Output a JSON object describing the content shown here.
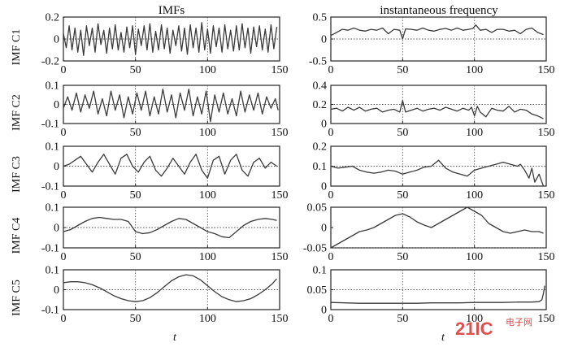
{
  "figure": {
    "left_title": "IMFs",
    "right_title": "instantaneous frequency",
    "xlabel": "t",
    "watermark": {
      "main": "21IC",
      "small": "电子网"
    },
    "colors": {
      "line": "#3a3a3a",
      "axis": "#222222",
      "refline": "#555555",
      "watermark_red": "#d83232",
      "watermark_text": "#d83232"
    }
  },
  "chart_data": [
    {
      "type": "line",
      "panel": "left-1",
      "ylabel": "IMF C1",
      "xlim": [
        0,
        150
      ],
      "ylim": [
        -0.2,
        0.2
      ],
      "xticks": [
        "0",
        "50",
        "100",
        "150"
      ],
      "yticks": [
        "0.2",
        "0",
        "-0.2"
      ],
      "refline_y": 0,
      "vlines": [
        50,
        100
      ],
      "series": [
        {
          "x": [
            0,
            2,
            4,
            6,
            8,
            10,
            12,
            14,
            16,
            18,
            20,
            22,
            24,
            26,
            28,
            30,
            32,
            34,
            36,
            38,
            40,
            42,
            44,
            46,
            48,
            50,
            52,
            54,
            56,
            58,
            60,
            62,
            64,
            66,
            68,
            70,
            72,
            74,
            76,
            78,
            80,
            82,
            84,
            86,
            88,
            90,
            92,
            94,
            96,
            98,
            100,
            102,
            104,
            106,
            108,
            110,
            112,
            114,
            116,
            118,
            120,
            122,
            124,
            126,
            128,
            130,
            132,
            134,
            136,
            138,
            140,
            142,
            144,
            146,
            148
          ],
          "y": [
            0.05,
            -0.08,
            0.12,
            -0.1,
            0.1,
            -0.12,
            0.08,
            -0.15,
            0.12,
            -0.06,
            0.1,
            -0.12,
            0.14,
            -0.05,
            0.08,
            -0.13,
            0.1,
            -0.09,
            0.13,
            -0.1,
            0.06,
            -0.12,
            0.11,
            -0.08,
            0.12,
            -0.14,
            0.09,
            -0.06,
            0.12,
            -0.1,
            0.14,
            -0.12,
            0.07,
            -0.1,
            0.13,
            -0.09,
            0.1,
            -0.13,
            0.08,
            -0.06,
            0.12,
            -0.11,
            0.1,
            -0.14,
            0.13,
            -0.08,
            0.1,
            -0.12,
            0.15,
            -0.1,
            0.09,
            -0.13,
            0.12,
            -0.07,
            0.1,
            -0.12,
            0.13,
            -0.09,
            0.08,
            -0.11,
            0.12,
            -0.1,
            0.14,
            -0.08,
            0.1,
            -0.13,
            0.11,
            -0.07,
            0.12,
            -0.1,
            0.09,
            -0.12,
            0.13,
            -0.09,
            0.11
          ]
        }
      ]
    },
    {
      "type": "line",
      "panel": "left-2",
      "ylabel": "IMF C2",
      "xlim": [
        0,
        150
      ],
      "ylim": [
        -0.1,
        0.1
      ],
      "xticks": [
        "0",
        "50",
        "100",
        "150"
      ],
      "yticks": [
        "0.1",
        "0",
        "-0.1"
      ],
      "refline_y": 0,
      "vlines": [
        50,
        100
      ],
      "series": [
        {
          "x": [
            0,
            3,
            6,
            9,
            12,
            15,
            18,
            21,
            24,
            27,
            30,
            33,
            36,
            39,
            42,
            45,
            48,
            51,
            54,
            57,
            60,
            63,
            66,
            69,
            72,
            75,
            78,
            81,
            84,
            87,
            90,
            93,
            96,
            99,
            102,
            105,
            108,
            111,
            114,
            117,
            120,
            123,
            126,
            129,
            132,
            135,
            138,
            141,
            144,
            147,
            149
          ],
          "y": [
            -0.02,
            0.04,
            -0.03,
            0.06,
            -0.04,
            0.05,
            -0.02,
            0.07,
            -0.05,
            0.03,
            -0.06,
            0.07,
            -0.03,
            0.05,
            -0.07,
            0.04,
            -0.05,
            0.06,
            -0.03,
            0.07,
            -0.06,
            0.04,
            -0.05,
            0.08,
            -0.04,
            0.05,
            -0.07,
            0.06,
            -0.03,
            0.08,
            -0.06,
            0.04,
            -0.05,
            0.07,
            -0.09,
            0.05,
            -0.04,
            0.06,
            -0.05,
            0.03,
            -0.06,
            0.07,
            -0.04,
            0.05,
            -0.03,
            0.06,
            -0.05,
            0.04,
            -0.02,
            0.03,
            -0.03
          ]
        }
      ]
    },
    {
      "type": "line",
      "panel": "left-3",
      "ylabel": "IMF C3",
      "xlim": [
        0,
        150
      ],
      "ylim": [
        -0.1,
        0.1
      ],
      "xticks": [
        "0",
        "50",
        "100",
        "150"
      ],
      "yticks": [
        "0.1",
        "0",
        "-0.1"
      ],
      "refline_y": 0,
      "vlines": [
        50,
        100
      ],
      "series": [
        {
          "x": [
            0,
            4,
            8,
            12,
            16,
            20,
            24,
            28,
            32,
            36,
            40,
            44,
            48,
            52,
            56,
            60,
            64,
            68,
            72,
            76,
            80,
            84,
            88,
            92,
            96,
            100,
            104,
            108,
            112,
            116,
            120,
            124,
            128,
            132,
            136,
            140,
            144,
            148
          ],
          "y": [
            0.0,
            0.01,
            0.03,
            0.05,
            0.01,
            -0.03,
            0.02,
            0.06,
            0.01,
            -0.04,
            0.04,
            0.06,
            0.0,
            -0.03,
            0.02,
            0.05,
            -0.02,
            -0.05,
            -0.01,
            0.04,
            0.0,
            -0.04,
            0.02,
            0.06,
            -0.02,
            -0.06,
            0.03,
            0.05,
            -0.04,
            0.03,
            0.06,
            -0.02,
            -0.05,
            0.02,
            0.04,
            -0.01,
            0.02,
            0.0
          ]
        }
      ]
    },
    {
      "type": "line",
      "panel": "left-4",
      "ylabel": "IMF C4",
      "xlim": [
        0,
        150
      ],
      "ylim": [
        -0.1,
        0.1
      ],
      "xticks": [
        "0",
        "50",
        "100",
        "150"
      ],
      "yticks": [
        "0.1",
        "0",
        "-0.1"
      ],
      "refline_y": 0,
      "vlines": [
        50,
        100
      ],
      "series": [
        {
          "x": [
            0,
            5,
            10,
            15,
            20,
            25,
            30,
            35,
            40,
            45,
            50,
            55,
            60,
            65,
            70,
            75,
            80,
            85,
            90,
            95,
            100,
            105,
            110,
            115,
            120,
            125,
            130,
            135,
            140,
            145,
            148
          ],
          "y": [
            -0.02,
            -0.01,
            0.01,
            0.03,
            0.045,
            0.05,
            0.045,
            0.04,
            0.04,
            0.03,
            -0.02,
            -0.03,
            -0.025,
            -0.01,
            0.01,
            0.03,
            0.045,
            0.04,
            0.02,
            0.0,
            -0.02,
            -0.03,
            -0.045,
            -0.05,
            -0.02,
            0.01,
            0.03,
            0.04,
            0.045,
            0.04,
            0.035
          ]
        }
      ]
    },
    {
      "type": "line",
      "panel": "left-5",
      "ylabel": "IMF C5",
      "xlim": [
        0,
        150
      ],
      "ylim": [
        -0.1,
        0.1
      ],
      "xticks": [
        "0",
        "50",
        "100",
        "150"
      ],
      "yticks": [
        "0.1",
        "0",
        "-0.1"
      ],
      "refline_y": 0,
      "vlines": [
        50,
        100
      ],
      "series": [
        {
          "x": [
            0,
            5,
            10,
            15,
            20,
            25,
            30,
            35,
            40,
            45,
            50,
            55,
            60,
            65,
            70,
            75,
            80,
            85,
            90,
            95,
            100,
            105,
            110,
            115,
            120,
            125,
            130,
            135,
            140,
            145,
            148
          ],
          "y": [
            0.035,
            0.04,
            0.04,
            0.035,
            0.025,
            0.01,
            -0.01,
            -0.03,
            -0.045,
            -0.055,
            -0.06,
            -0.055,
            -0.04,
            -0.015,
            0.015,
            0.045,
            0.065,
            0.075,
            0.07,
            0.05,
            0.02,
            -0.01,
            -0.035,
            -0.05,
            -0.06,
            -0.055,
            -0.045,
            -0.025,
            0.0,
            0.03,
            0.055
          ]
        }
      ]
    },
    {
      "type": "line",
      "panel": "right-1",
      "ylabel": "",
      "xlim": [
        0,
        150
      ],
      "ylim": [
        -0.5,
        0.5
      ],
      "xticks": [
        "0",
        "50",
        "100",
        "150"
      ],
      "yticks": [
        "0.5",
        "0",
        "-0.5"
      ],
      "refline_y": 0,
      "vlines": [
        50,
        100
      ],
      "series": [
        {
          "x": [
            0,
            4,
            8,
            12,
            16,
            20,
            24,
            28,
            32,
            36,
            40,
            44,
            48,
            50,
            52,
            56,
            60,
            64,
            68,
            72,
            76,
            80,
            84,
            88,
            92,
            96,
            99,
            101,
            104,
            108,
            112,
            116,
            120,
            124,
            128,
            132,
            136,
            140,
            144,
            148
          ],
          "y": [
            0.08,
            0.15,
            0.22,
            0.2,
            0.25,
            0.2,
            0.18,
            0.22,
            0.2,
            0.25,
            0.12,
            0.22,
            0.2,
            0.0,
            0.23,
            0.22,
            0.2,
            0.25,
            0.2,
            0.18,
            0.22,
            0.24,
            0.2,
            0.25,
            0.2,
            0.22,
            0.24,
            0.32,
            0.2,
            0.22,
            0.15,
            0.22,
            0.22,
            0.18,
            0.2,
            0.12,
            0.22,
            0.25,
            0.15,
            0.1
          ]
        }
      ]
    },
    {
      "type": "line",
      "panel": "right-2",
      "ylabel": "",
      "xlim": [
        0,
        150
      ],
      "ylim": [
        0,
        0.4
      ],
      "xticks": [
        "0",
        "50",
        "100",
        "150"
      ],
      "yticks": [
        "0.4",
        "0.2",
        "0"
      ],
      "refline_y": 0.2,
      "vlines": [
        50,
        100
      ],
      "series": [
        {
          "x": [
            0,
            4,
            8,
            12,
            16,
            20,
            24,
            28,
            32,
            36,
            40,
            44,
            48,
            50,
            52,
            56,
            60,
            64,
            68,
            72,
            76,
            80,
            84,
            88,
            92,
            96,
            98,
            100,
            102,
            104,
            108,
            112,
            116,
            120,
            124,
            128,
            132,
            136,
            140,
            144,
            148
          ],
          "y": [
            0.15,
            0.16,
            0.13,
            0.17,
            0.14,
            0.17,
            0.13,
            0.15,
            0.16,
            0.12,
            0.14,
            0.15,
            0.12,
            0.24,
            0.12,
            0.14,
            0.16,
            0.13,
            0.15,
            0.16,
            0.14,
            0.17,
            0.15,
            0.13,
            0.16,
            0.14,
            0.17,
            0.08,
            0.18,
            0.12,
            0.07,
            0.16,
            0.14,
            0.13,
            0.18,
            0.12,
            0.15,
            0.14,
            0.1,
            0.08,
            0.05
          ]
        }
      ]
    },
    {
      "type": "line",
      "panel": "right-3",
      "ylabel": "",
      "xlim": [
        0,
        150
      ],
      "ylim": [
        0,
        0.2
      ],
      "xticks": [
        "0",
        "50",
        "100",
        "150"
      ],
      "yticks": [
        "0.2",
        "0.1",
        "0"
      ],
      "refline_y": 0.1,
      "vlines": [
        50,
        100
      ],
      "series": [
        {
          "x": [
            0,
            5,
            10,
            15,
            20,
            25,
            30,
            35,
            40,
            45,
            50,
            55,
            60,
            65,
            70,
            75,
            80,
            85,
            90,
            95,
            100,
            105,
            110,
            115,
            120,
            125,
            130,
            132,
            135,
            138,
            140,
            142,
            145,
            148
          ],
          "y": [
            0.1,
            0.09,
            0.095,
            0.1,
            0.08,
            0.07,
            0.065,
            0.07,
            0.08,
            0.075,
            0.06,
            0.07,
            0.08,
            0.095,
            0.1,
            0.13,
            0.09,
            0.07,
            0.06,
            0.05,
            0.08,
            0.09,
            0.1,
            0.11,
            0.12,
            0.11,
            0.1,
            0.11,
            0.08,
            0.04,
            0.09,
            0.02,
            0.06,
            0.0
          ]
        }
      ]
    },
    {
      "type": "line",
      "panel": "right-4",
      "ylabel": "",
      "xlim": [
        0,
        150
      ],
      "ylim": [
        0,
        0.05
      ],
      "xticks": [
        "0",
        "50",
        "100",
        "150"
      ],
      "yticks": [
        "0.05",
        "0",
        "-0.05"
      ],
      "refline_y": 0,
      "vlines": [
        50,
        100
      ],
      "series": [
        {
          "x": [
            0,
            5,
            10,
            15,
            20,
            25,
            30,
            35,
            40,
            45,
            50,
            55,
            60,
            65,
            70,
            75,
            80,
            85,
            90,
            95,
            100,
            105,
            110,
            115,
            120,
            125,
            130,
            135,
            140,
            145,
            148
          ],
          "y": [
            0.0,
            0.005,
            0.01,
            0.015,
            0.02,
            0.022,
            0.025,
            0.03,
            0.035,
            0.04,
            0.042,
            0.038,
            0.032,
            0.028,
            0.025,
            0.03,
            0.035,
            0.04,
            0.045,
            0.05,
            0.045,
            0.04,
            0.03,
            0.025,
            0.02,
            0.018,
            0.02,
            0.022,
            0.02,
            0.02,
            0.018
          ]
        }
      ]
    },
    {
      "type": "line",
      "panel": "right-5",
      "ylabel": "",
      "xlim": [
        0,
        150
      ],
      "ylim": [
        0,
        0.1
      ],
      "xticks": [
        "0",
        "50",
        "100",
        "150"
      ],
      "yticks": [
        "0.1",
        "0.05",
        "0"
      ],
      "refline_y": 0.05,
      "vlines": [
        50,
        100
      ],
      "series": [
        {
          "x": [
            0,
            10,
            20,
            30,
            40,
            50,
            60,
            70,
            80,
            90,
            100,
            110,
            120,
            130,
            140,
            145,
            147,
            148,
            149
          ],
          "y": [
            0.018,
            0.017,
            0.016,
            0.016,
            0.016,
            0.016,
            0.016,
            0.017,
            0.017,
            0.017,
            0.018,
            0.018,
            0.018,
            0.019,
            0.019,
            0.02,
            0.025,
            0.04,
            0.06
          ]
        }
      ]
    }
  ]
}
